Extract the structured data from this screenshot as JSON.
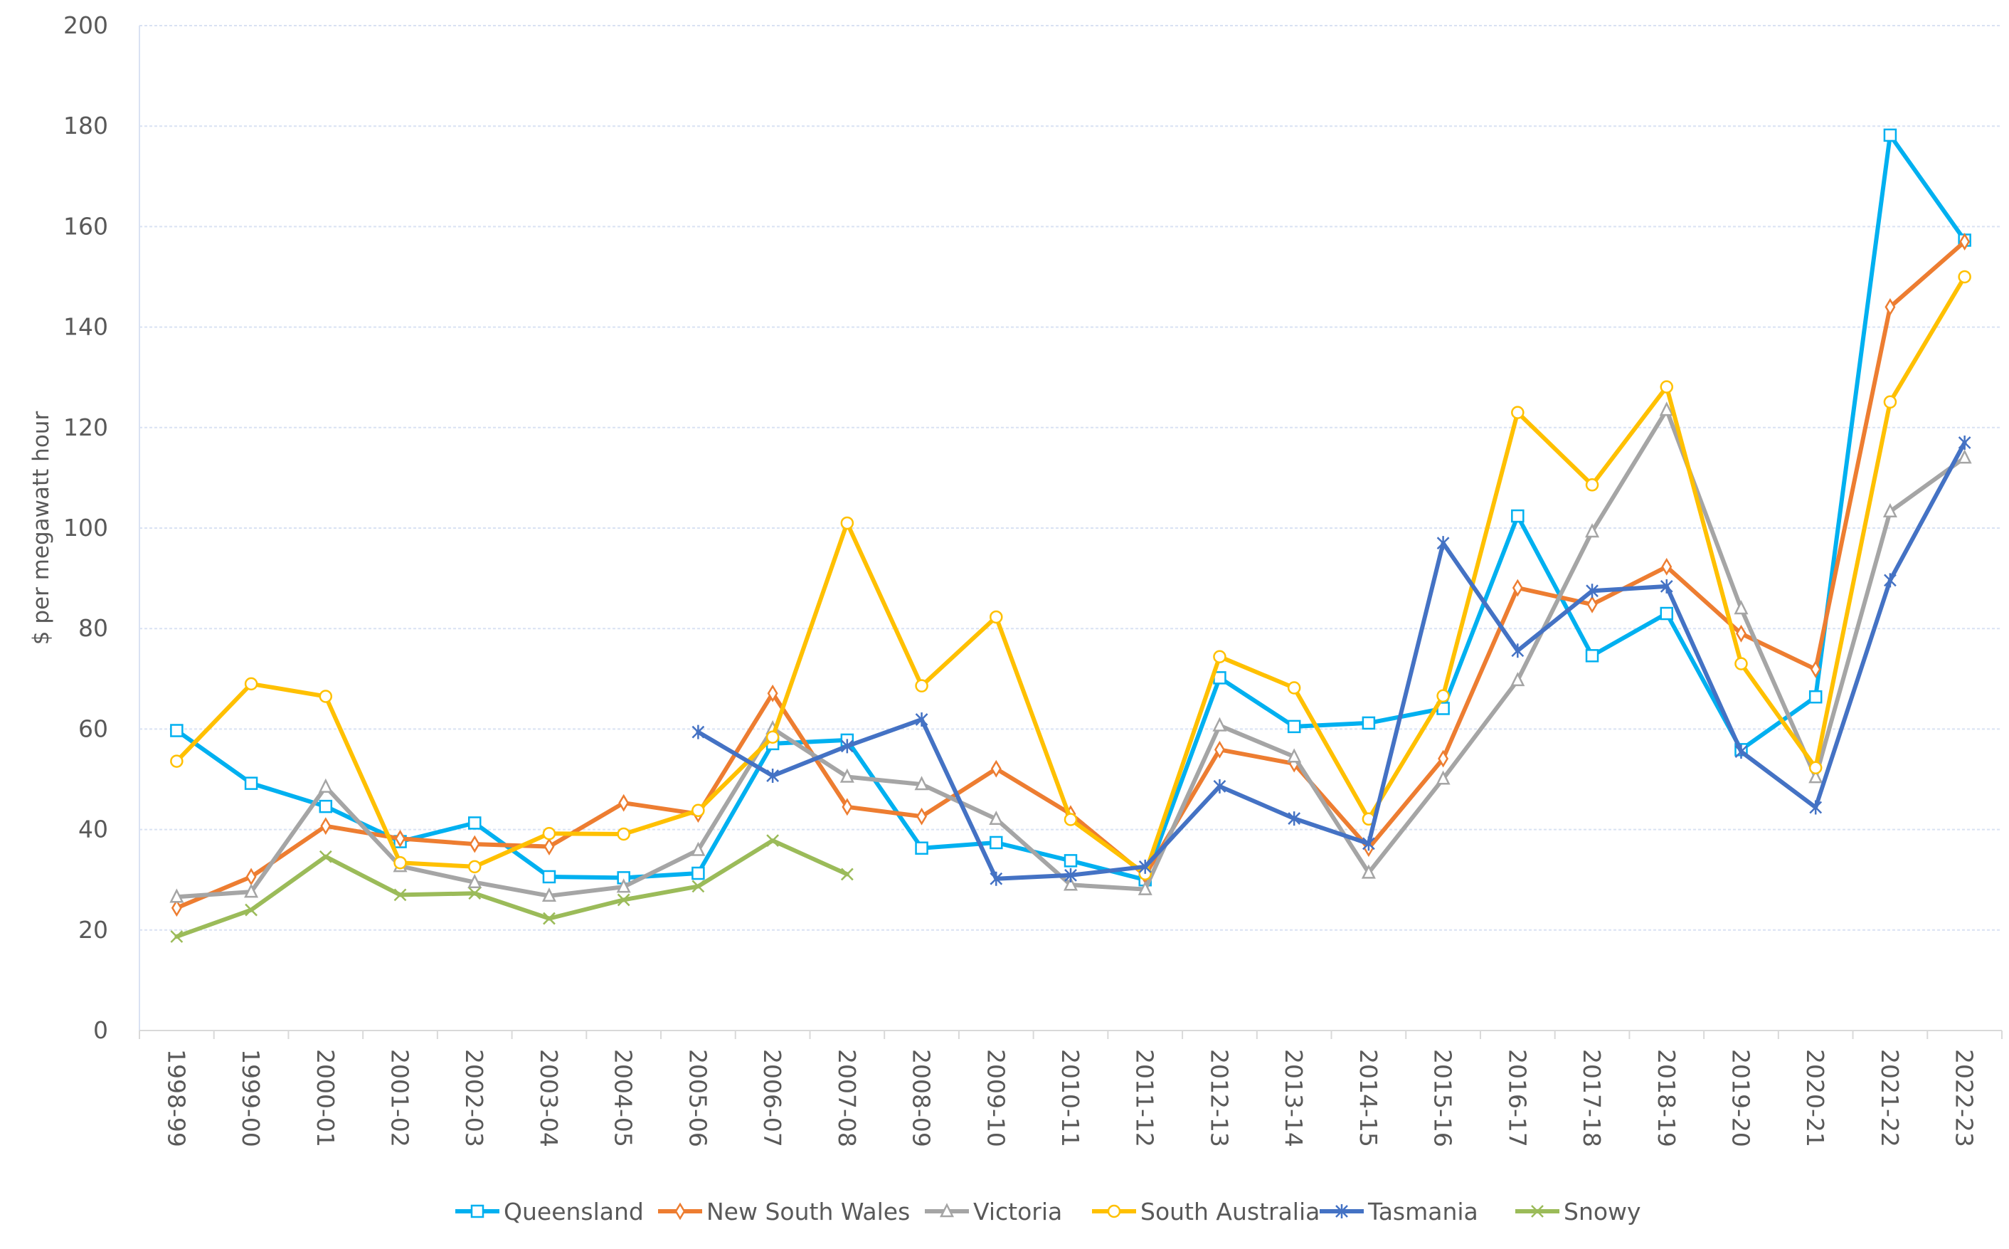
{
  "chart_data": {
    "type": "line",
    "title": "",
    "xlabel": "",
    "ylabel": "$ per megawatt hour",
    "ylim": [
      0,
      200
    ],
    "yticks": [
      0,
      20,
      40,
      60,
      80,
      100,
      120,
      140,
      160,
      180,
      200
    ],
    "grid": true,
    "legend_position": "bottom",
    "categories": [
      "1998-99",
      "1999-00",
      "2000-01",
      "2001-02",
      "2002-03",
      "2003-04",
      "2004-05",
      "2005-06",
      "2006-07",
      "2007-08",
      "2008-09",
      "2009-10",
      "2010-11",
      "2011-12",
      "2012-13",
      "2013-14",
      "2014-15",
      "2015-16",
      "2016-17",
      "2017-18",
      "2018-19",
      "2019-20",
      "2020-21",
      "2021-22",
      "2022-23"
    ],
    "series": [
      {
        "name": "Queensland",
        "color": "#00B0F0",
        "marker": "square",
        "values": [
          59.7,
          49.2,
          44.6,
          37.6,
          41.3,
          30.6,
          30.4,
          31.3,
          57.1,
          57.8,
          36.3,
          37.4,
          33.8,
          30.0,
          70.2,
          60.5,
          61.2,
          64.1,
          102.4,
          74.6,
          83.0,
          55.9,
          66.4,
          178.2,
          157.3
        ]
      },
      {
        "name": "New South Wales",
        "color": "#ED7D31",
        "marker": "diamond",
        "values": [
          24.4,
          30.6,
          40.7,
          38.2,
          37.1,
          36.6,
          45.3,
          43.1,
          67.1,
          44.5,
          42.6,
          52.1,
          43.1,
          30.9,
          55.9,
          53.1,
          36.3,
          54.1,
          88.1,
          84.8,
          92.3,
          79.0,
          71.9,
          144.0,
          157.0
        ]
      },
      {
        "name": "Victoria",
        "color": "#A5A5A5",
        "marker": "triangle",
        "values": [
          26.6,
          27.6,
          48.5,
          32.7,
          29.5,
          26.8,
          28.6,
          35.9,
          60.1,
          50.5,
          49.0,
          42.1,
          29.0,
          28.1,
          60.7,
          54.5,
          31.4,
          50.1,
          69.7,
          99.3,
          123.5,
          84.0,
          50.4,
          103.3,
          114.0
        ]
      },
      {
        "name": "South Australia",
        "color": "#FFC000",
        "marker": "circle",
        "values": [
          53.6,
          69.0,
          66.5,
          33.4,
          32.6,
          39.2,
          39.1,
          43.8,
          58.4,
          101.0,
          68.6,
          82.3,
          42.0,
          31.2,
          74.4,
          68.2,
          42.1,
          66.6,
          123.0,
          108.6,
          128.1,
          73.0,
          52.3,
          125.1,
          150.0
        ]
      },
      {
        "name": "Tasmania",
        "color": "#4472C4",
        "marker": "star",
        "values": [
          null,
          null,
          null,
          null,
          null,
          null,
          null,
          59.4,
          50.7,
          56.6,
          61.9,
          30.2,
          30.9,
          32.6,
          48.6,
          42.2,
          37.2,
          97.0,
          75.6,
          87.5,
          88.4,
          55.5,
          44.4,
          89.6,
          117.0
        ]
      },
      {
        "name": "Snowy",
        "color": "#9BBB59",
        "marker": "x",
        "values": [
          18.7,
          24.0,
          34.6,
          27.0,
          27.3,
          22.3,
          26.0,
          28.7,
          37.8,
          31.1,
          null,
          null,
          null,
          null,
          null,
          null,
          null,
          null,
          null,
          null,
          null,
          null,
          null,
          null,
          null
        ]
      }
    ]
  }
}
